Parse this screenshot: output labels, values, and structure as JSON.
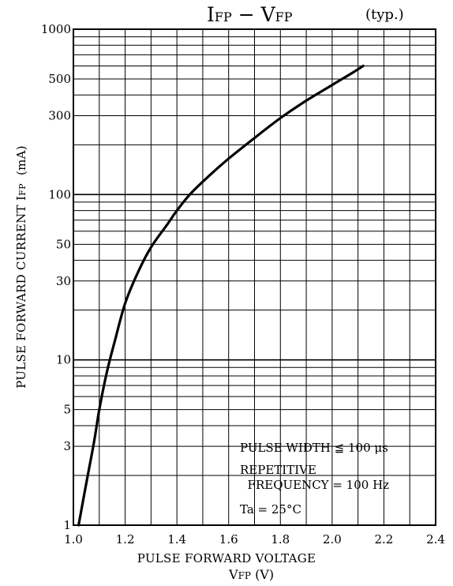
{
  "chart_data": {
    "type": "line",
    "title_main": "I",
    "title_main_sub": "FP",
    "title_sep": " − V",
    "title_sep_sub": "FP",
    "title_note": "(typ.)",
    "xlabel": "PULSE FORWARD VOLTAGE",
    "xlabel_symbol": "V",
    "xlabel_symbol_sub": "FP",
    "xlabel_unit": "(V)",
    "ylabel": "PULSE FORWARD CURRENT  I",
    "ylabel_sub": "FP",
    "ylabel_unit": "(mA)",
    "xlim": [
      1.0,
      2.4
    ],
    "ylim": [
      1,
      1000
    ],
    "yscale": "log",
    "x_ticks": [
      "1.0",
      "1.2",
      "1.4",
      "1.6",
      "1.8",
      "2.0",
      "2.2",
      "2.4"
    ],
    "y_ticks": [
      "1",
      "3",
      "5",
      "10",
      "30",
      "50",
      "100",
      "300",
      "500",
      "1000"
    ],
    "grid": true,
    "annotations": {
      "line1": "PULSE WIDTH ≦ 100 μs",
      "line2": "REPETITIVE",
      "line3": "  FREQUENCY = 100 Hz",
      "line4": "Ta = 25°C"
    },
    "series": [
      {
        "x": [
          1.02,
          1.05,
          1.08,
          1.1,
          1.13,
          1.16,
          1.2,
          1.25,
          1.3,
          1.36,
          1.4,
          1.45,
          1.52,
          1.6,
          1.7,
          1.8,
          1.9,
          2.0,
          2.07,
          2.12
        ],
        "y": [
          1,
          1.8,
          3.2,
          5,
          8.5,
          13,
          22,
          34,
          48,
          65,
          80,
          100,
          128,
          165,
          220,
          290,
          370,
          460,
          535,
          600
        ]
      }
    ]
  }
}
